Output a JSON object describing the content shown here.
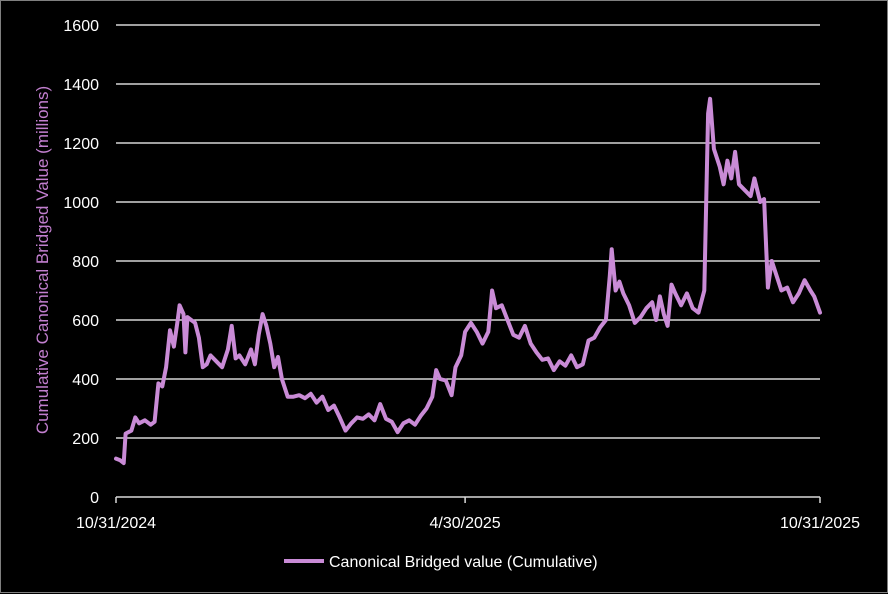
{
  "chart_data": {
    "type": "line",
    "title": "",
    "ylabel": "Cumulative Canonical Bridged Value (millions)",
    "xlabel": "",
    "ylim": [
      0,
      1600
    ],
    "yticks": [
      0,
      200,
      400,
      600,
      800,
      1000,
      1200,
      1400,
      1600
    ],
    "xlim": [
      "2024-10-31",
      "2025-10-31"
    ],
    "xticks": [
      "10/31/2024",
      "4/30/2025",
      "10/31/2025"
    ],
    "grid": "horizontal",
    "legend": "bottom",
    "colors": {
      "line": "#c98bd6",
      "grid": "#ffffff",
      "background": "#000000",
      "axis_title": "#c27fcf"
    },
    "series": [
      {
        "name": "Canonical Bridged value (Cumulative)",
        "points": [
          [
            "2024-10-31",
            130
          ],
          [
            "2024-11-02",
            125
          ],
          [
            "2024-11-04",
            115
          ],
          [
            "2024-11-05",
            215
          ],
          [
            "2024-11-08",
            225
          ],
          [
            "2024-11-10",
            270
          ],
          [
            "2024-11-12",
            250
          ],
          [
            "2024-11-15",
            260
          ],
          [
            "2024-11-18",
            245
          ],
          [
            "2024-11-20",
            255
          ],
          [
            "2024-11-22",
            385
          ],
          [
            "2024-11-24",
            375
          ],
          [
            "2024-11-26",
            440
          ],
          [
            "2024-11-28",
            565
          ],
          [
            "2024-11-30",
            510
          ],
          [
            "2024-12-02",
            600
          ],
          [
            "2024-12-03",
            650
          ],
          [
            "2024-12-05",
            620
          ],
          [
            "2024-12-06",
            490
          ],
          [
            "2024-12-07",
            610
          ],
          [
            "2024-12-09",
            600
          ],
          [
            "2024-12-11",
            590
          ],
          [
            "2024-12-13",
            540
          ],
          [
            "2024-12-15",
            440
          ],
          [
            "2024-12-17",
            450
          ],
          [
            "2024-12-19",
            480
          ],
          [
            "2024-12-22",
            460
          ],
          [
            "2024-12-25",
            440
          ],
          [
            "2024-12-28",
            500
          ],
          [
            "2024-12-30",
            580
          ],
          [
            "2025-01-01",
            470
          ],
          [
            "2025-01-03",
            480
          ],
          [
            "2025-01-06",
            450
          ],
          [
            "2025-01-09",
            500
          ],
          [
            "2025-01-11",
            450
          ],
          [
            "2025-01-13",
            550
          ],
          [
            "2025-01-15",
            620
          ],
          [
            "2025-01-17",
            580
          ],
          [
            "2025-01-19",
            520
          ],
          [
            "2025-01-21",
            440
          ],
          [
            "2025-01-23",
            475
          ],
          [
            "2025-01-25",
            400
          ],
          [
            "2025-01-28",
            340
          ],
          [
            "2025-01-31",
            340
          ],
          [
            "2025-02-03",
            345
          ],
          [
            "2025-02-06",
            335
          ],
          [
            "2025-02-09",
            350
          ],
          [
            "2025-02-12",
            320
          ],
          [
            "2025-02-15",
            340
          ],
          [
            "2025-02-18",
            295
          ],
          [
            "2025-02-21",
            310
          ],
          [
            "2025-02-24",
            270
          ],
          [
            "2025-02-27",
            225
          ],
          [
            "2025-03-02",
            250
          ],
          [
            "2025-03-05",
            270
          ],
          [
            "2025-03-08",
            265
          ],
          [
            "2025-03-11",
            280
          ],
          [
            "2025-03-14",
            260
          ],
          [
            "2025-03-17",
            315
          ],
          [
            "2025-03-20",
            265
          ],
          [
            "2025-03-23",
            255
          ],
          [
            "2025-03-26",
            220
          ],
          [
            "2025-03-29",
            250
          ],
          [
            "2025-04-01",
            260
          ],
          [
            "2025-04-04",
            245
          ],
          [
            "2025-04-07",
            275
          ],
          [
            "2025-04-10",
            300
          ],
          [
            "2025-04-13",
            340
          ],
          [
            "2025-04-15",
            430
          ],
          [
            "2025-04-17",
            400
          ],
          [
            "2025-04-20",
            395
          ],
          [
            "2025-04-23",
            345
          ],
          [
            "2025-04-25",
            440
          ],
          [
            "2025-04-28",
            480
          ],
          [
            "2025-04-30",
            560
          ],
          [
            "2025-05-03",
            590
          ],
          [
            "2025-05-06",
            560
          ],
          [
            "2025-05-09",
            520
          ],
          [
            "2025-05-12",
            560
          ],
          [
            "2025-05-14",
            700
          ],
          [
            "2025-05-16",
            640
          ],
          [
            "2025-05-19",
            650
          ],
          [
            "2025-05-22",
            600
          ],
          [
            "2025-05-25",
            550
          ],
          [
            "2025-05-28",
            540
          ],
          [
            "2025-05-31",
            580
          ],
          [
            "2025-06-03",
            520
          ],
          [
            "2025-06-06",
            490
          ],
          [
            "2025-06-09",
            465
          ],
          [
            "2025-06-12",
            470
          ],
          [
            "2025-06-15",
            430
          ],
          [
            "2025-06-18",
            460
          ],
          [
            "2025-06-21",
            445
          ],
          [
            "2025-06-24",
            480
          ],
          [
            "2025-06-27",
            440
          ],
          [
            "2025-06-30",
            450
          ],
          [
            "2025-07-03",
            530
          ],
          [
            "2025-07-06",
            540
          ],
          [
            "2025-07-09",
            575
          ],
          [
            "2025-07-12",
            600
          ],
          [
            "2025-07-14",
            750
          ],
          [
            "2025-07-15",
            840
          ],
          [
            "2025-07-17",
            700
          ],
          [
            "2025-07-19",
            730
          ],
          [
            "2025-07-21",
            690
          ],
          [
            "2025-07-24",
            650
          ],
          [
            "2025-07-27",
            590
          ],
          [
            "2025-07-30",
            610
          ],
          [
            "2025-08-02",
            640
          ],
          [
            "2025-08-05",
            660
          ],
          [
            "2025-08-07",
            600
          ],
          [
            "2025-08-09",
            680
          ],
          [
            "2025-08-11",
            620
          ],
          [
            "2025-08-13",
            580
          ],
          [
            "2025-08-15",
            720
          ],
          [
            "2025-08-17",
            690
          ],
          [
            "2025-08-20",
            650
          ],
          [
            "2025-08-23",
            690
          ],
          [
            "2025-08-26",
            640
          ],
          [
            "2025-08-29",
            625
          ],
          [
            "2025-09-01",
            700
          ],
          [
            "2025-09-03",
            1300
          ],
          [
            "2025-09-04",
            1350
          ],
          [
            "2025-09-06",
            1180
          ],
          [
            "2025-09-09",
            1120
          ],
          [
            "2025-09-11",
            1060
          ],
          [
            "2025-09-13",
            1140
          ],
          [
            "2025-09-15",
            1080
          ],
          [
            "2025-09-17",
            1170
          ],
          [
            "2025-09-19",
            1060
          ],
          [
            "2025-09-22",
            1040
          ],
          [
            "2025-09-25",
            1020
          ],
          [
            "2025-09-27",
            1080
          ],
          [
            "2025-09-30",
            1000
          ],
          [
            "2025-10-02",
            1010
          ],
          [
            "2025-10-04",
            710
          ],
          [
            "2025-10-06",
            800
          ],
          [
            "2025-10-08",
            760
          ],
          [
            "2025-10-11",
            700
          ],
          [
            "2025-10-14",
            710
          ],
          [
            "2025-10-17",
            660
          ],
          [
            "2025-10-20",
            690
          ],
          [
            "2025-10-23",
            735
          ],
          [
            "2025-10-26",
            700
          ],
          [
            "2025-10-28",
            680
          ],
          [
            "2025-10-31",
            625
          ]
        ]
      }
    ]
  }
}
